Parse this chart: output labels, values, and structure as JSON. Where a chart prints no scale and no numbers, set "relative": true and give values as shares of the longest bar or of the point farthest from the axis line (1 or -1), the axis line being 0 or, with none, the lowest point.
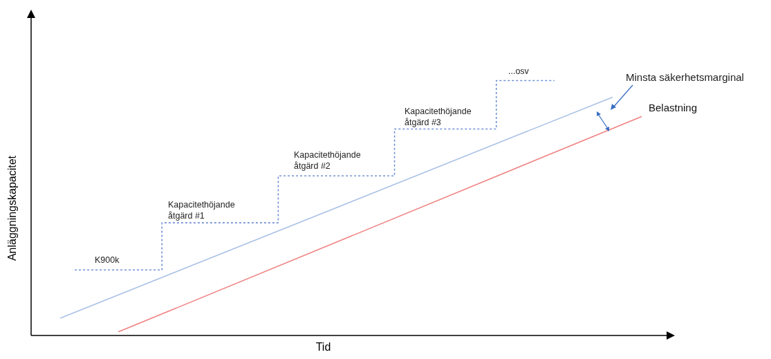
{
  "chart_data": {
    "type": "line",
    "relative": true,
    "xlabel": "Tid",
    "ylabel": "Anläggningskapacitet",
    "legend": false,
    "grid": false,
    "categories": [
      null,
      null,
      null,
      null,
      null,
      null,
      null,
      null,
      null,
      null,
      null,
      null,
      null,
      null,
      null,
      null,
      null,
      null,
      null,
      null,
      null,
      null,
      null,
      null,
      null,
      null,
      null,
      null,
      null,
      null,
      null,
      null,
      null,
      null,
      null,
      null,
      null,
      null,
      null,
      null,
      null,
      null,
      null,
      null,
      null
    ],
    "series": [
      {
        "type": "step",
        "color": "#6f8fd6",
        "line_style": "dotted",
        "values": [
          null,
          null,
          null,
          0.257,
          null,
          null,
          null,
          null,
          null,
          0.442,
          null,
          null,
          null,
          null,
          null,
          null,
          null,
          0.626,
          null,
          null,
          null,
          null,
          null,
          null,
          null,
          0.81,
          null,
          null,
          null,
          null,
          null,
          null,
          1,
          null,
          null,
          null,
          1,
          null,
          null,
          null,
          null,
          null,
          null,
          null,
          null
        ]
      },
      {
        "type": "line",
        "color": "#a9c1e6",
        "values": [
          null,
          null,
          0.068,
          null,
          null,
          null,
          null,
          null,
          null,
          null,
          null,
          null,
          null,
          null,
          null,
          null,
          null,
          null,
          null,
          null,
          null,
          null,
          null,
          null,
          null,
          null,
          null,
          null,
          null,
          null,
          null,
          null,
          null,
          null,
          null,
          null,
          null,
          null,
          null,
          null,
          0.935,
          null,
          null,
          null,
          null
        ]
      },
      {
        "type": "line",
        "name": "Belastning",
        "color": "#f08080",
        "values": [
          null,
          null,
          null,
          null,
          null,
          null,
          0.014,
          null,
          null,
          null,
          null,
          null,
          null,
          null,
          null,
          null,
          null,
          null,
          null,
          null,
          null,
          null,
          null,
          null,
          null,
          null,
          null,
          null,
          null,
          null,
          null,
          null,
          null,
          null,
          null,
          null,
          null,
          null,
          null,
          null,
          null,
          null,
          0.859,
          null,
          null
        ]
      }
    ],
    "annotations": [
      "K900k",
      "Kapacitethöjande åtgärd #1",
      "Kapacitethöjande åtgärd #2",
      "Kapacitethöjande åtgärd #3",
      "...osv",
      "Minsta säkerhetsmarginal"
    ]
  }
}
